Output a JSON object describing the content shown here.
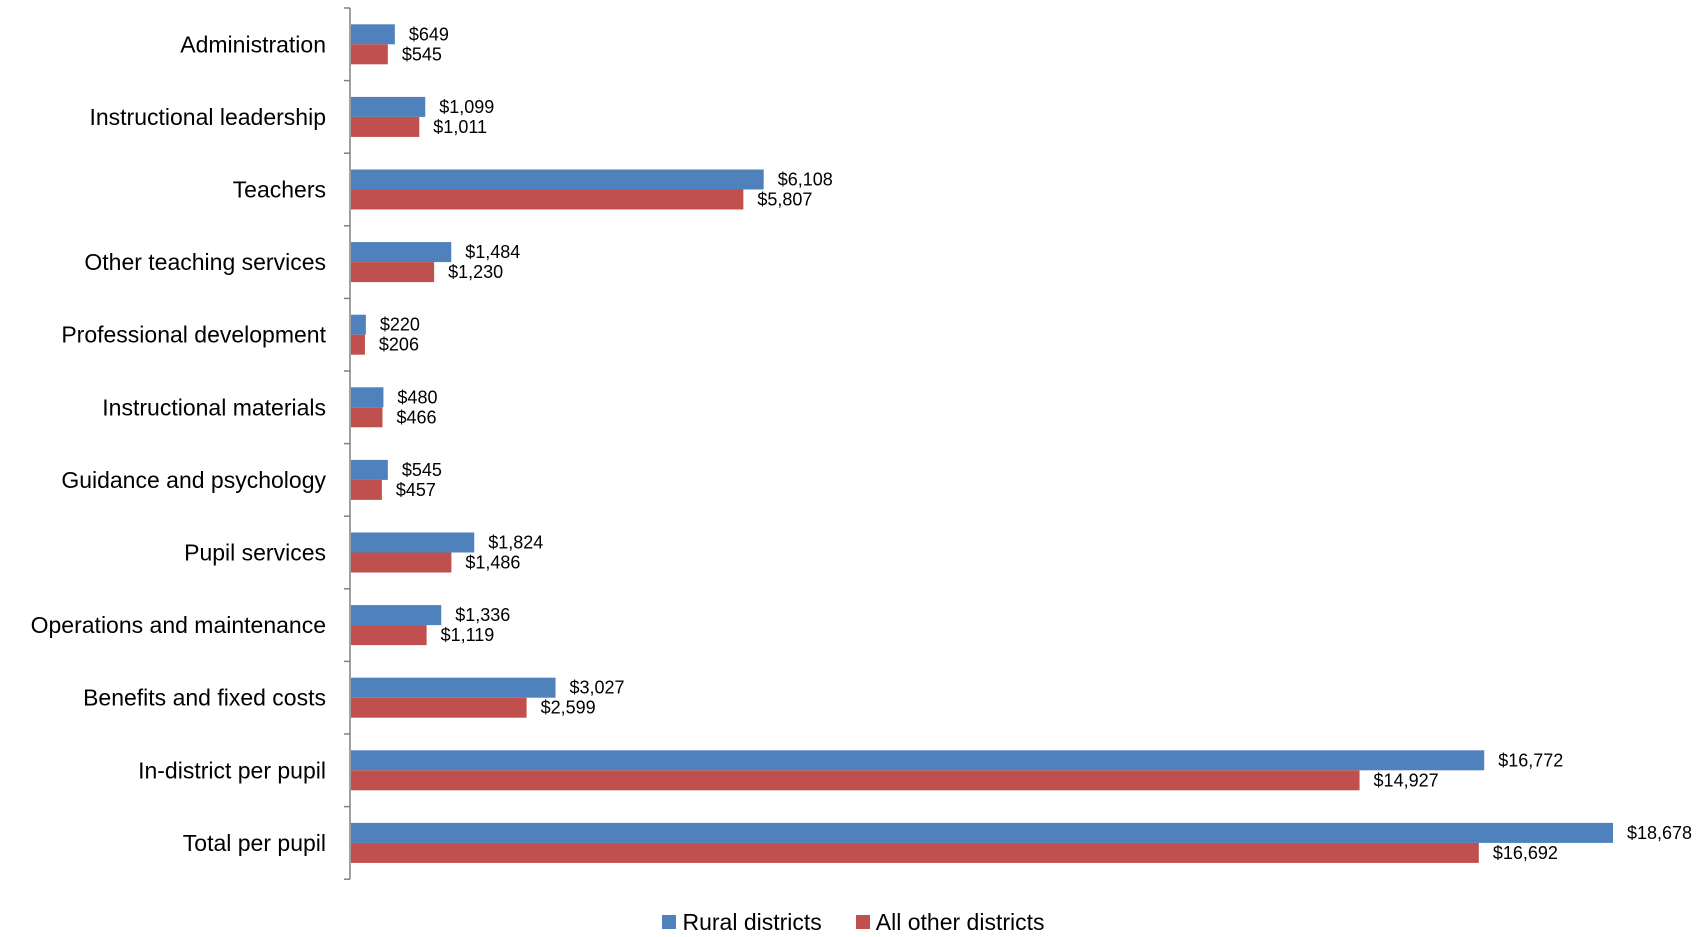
{
  "chart_data": {
    "type": "bar",
    "orientation": "horizontal",
    "categories": [
      "Administration",
      "Instructional leadership",
      "Teachers",
      "Other teaching services",
      "Professional development",
      "Instructional materials",
      "Guidance and psychology",
      "Pupil services",
      "Operations and maintenance",
      "Benefits and fixed costs",
      "In-district per pupil",
      "Total per pupil"
    ],
    "series": [
      {
        "name": "Rural districts",
        "color": "#4F81BD",
        "values": [
          649,
          1099,
          6108,
          1484,
          220,
          480,
          545,
          1824,
          1336,
          3027,
          16772,
          18678
        ],
        "labels": [
          "$649",
          "$1,099",
          "$6,108",
          "$1,484",
          "$220",
          "$480",
          "$545",
          "$1,824",
          "$1,336",
          "$3,027",
          "$16,772",
          "$18,678"
        ]
      },
      {
        "name": "All other districts",
        "color": "#C0504D",
        "values": [
          545,
          1011,
          5807,
          1230,
          206,
          466,
          457,
          1486,
          1119,
          2599,
          14927,
          16692
        ],
        "labels": [
          "$545",
          "$1,011",
          "$5,807",
          "$1,230",
          "$206",
          "$466",
          "$457",
          "$1,486",
          "$1,119",
          "$2,599",
          "$14,927",
          "$16,692"
        ]
      }
    ],
    "grid": false,
    "legend_position": "bottom"
  }
}
